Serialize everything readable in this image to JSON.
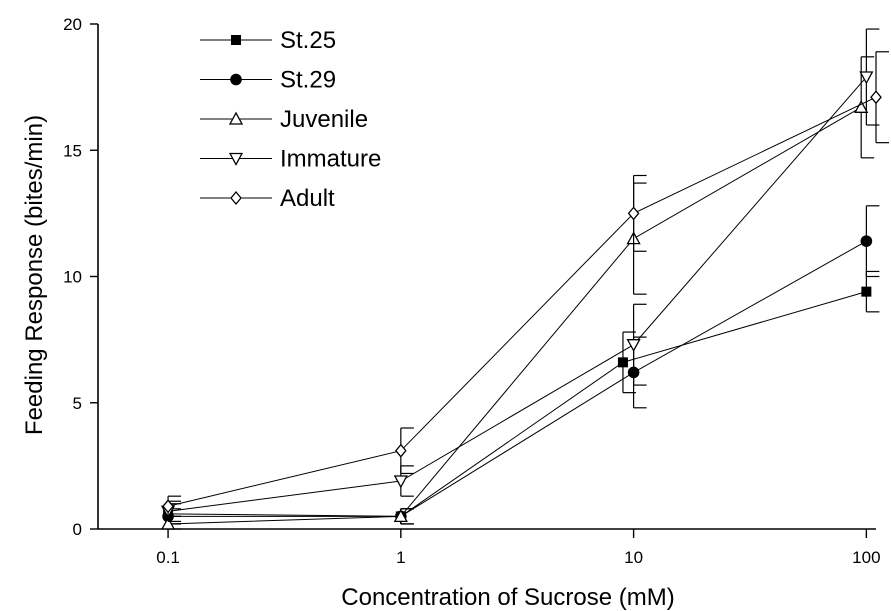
{
  "chart_data": {
    "type": "line",
    "title": "",
    "xlabel": "Concentration of Sucrose (mM)",
    "ylabel": "Feeding Response (bites/min)",
    "xscale": "log",
    "xlim": [
      0.05,
      110
    ],
    "ylim": [
      0,
      20
    ],
    "x": [
      0.1,
      1,
      10,
      100
    ],
    "x_tick_labels": [
      "0.1",
      "1",
      "10",
      "100"
    ],
    "y_ticks": [
      0,
      5,
      10,
      15,
      20
    ],
    "y_tick_labels": [
      "0",
      "5",
      "10",
      "15",
      "20"
    ],
    "grid": false,
    "legend_position": "top-left",
    "series": [
      {
        "name": "St.25",
        "marker": "filled-square",
        "x": [
          0.1,
          1,
          9,
          100
        ],
        "values": [
          0.6,
          0.5,
          6.6,
          9.4
        ],
        "error": [
          0.4,
          0.3,
          1.2,
          0.8
        ]
      },
      {
        "name": "St.29",
        "marker": "filled-circle",
        "x": [
          0.1,
          1,
          10,
          100
        ],
        "values": [
          0.5,
          0.5,
          6.2,
          11.4
        ],
        "error": [
          0.3,
          0.3,
          1.4,
          1.4
        ]
      },
      {
        "name": "Juvenile",
        "marker": "open-triangle-up",
        "x": [
          0.1,
          1,
          10,
          95
        ],
        "values": [
          0.2,
          0.5,
          11.5,
          16.7
        ],
        "error": [
          0.3,
          0.3,
          2.2,
          2.0
        ]
      },
      {
        "name": "Immature",
        "marker": "open-triangle-down",
        "x": [
          0.1,
          1,
          10,
          100
        ],
        "values": [
          0.7,
          1.9,
          7.3,
          17.9
        ],
        "error": [
          0.4,
          0.6,
          1.6,
          1.9
        ]
      },
      {
        "name": "Adult",
        "marker": "open-diamond",
        "x": [
          0.1,
          1,
          10,
          110
        ],
        "values": [
          0.9,
          3.1,
          12.5,
          17.1
        ],
        "error": [
          0.4,
          0.9,
          1.5,
          1.8
        ]
      }
    ]
  }
}
